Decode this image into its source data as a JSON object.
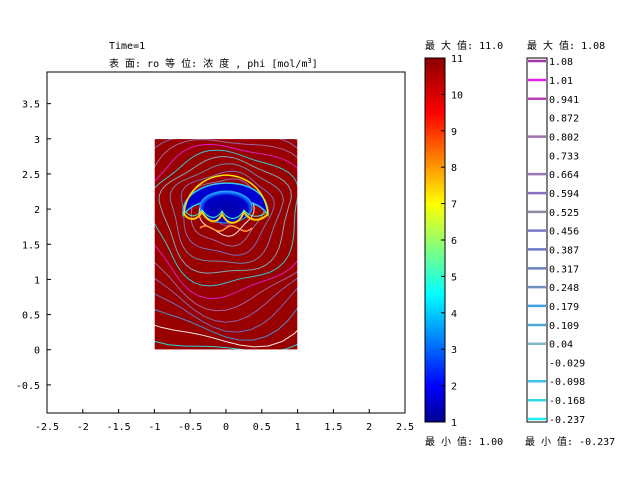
{
  "chart_data": {
    "type": "heatmap",
    "title_line1": "Time=1",
    "title_line2_prefix": "表 面: ro   等 位: 浓 度 , phi [mol/m",
    "title_line2_sup": "3",
    "title_line2_suffix": "]",
    "x_ticks": [
      "-2.5",
      "-2",
      "-1.5",
      "-1",
      "-0.5",
      "0",
      "0.5",
      "1",
      "1.5",
      "2",
      "2.5"
    ],
    "x_tick_values": [
      -2.5,
      -2,
      -1.5,
      -1,
      -0.5,
      0,
      0.5,
      1,
      1.5,
      2,
      2.5
    ],
    "y_ticks": [
      "3.5",
      "3",
      "2.5",
      "2",
      "1.5",
      "1",
      "0.5",
      "0",
      "-0.5"
    ],
    "y_tick_values": [
      3.5,
      3,
      2.5,
      2,
      1.5,
      1,
      0.5,
      0,
      -0.5
    ],
    "xlim": [
      -2.5,
      2.5
    ],
    "ylim": [
      -0.9,
      3.95
    ],
    "domain": {
      "x": [
        -1,
        1
      ],
      "y": [
        0,
        3
      ]
    },
    "surface": {
      "variable": "ro",
      "min": 1.0,
      "max": 11.0,
      "colorbar_ticks": [
        "11",
        "10",
        "9",
        "8",
        "7",
        "6",
        "5",
        "4",
        "3",
        "2",
        "1"
      ],
      "colorbar_values": [
        11,
        10,
        9,
        8,
        7,
        6,
        5,
        4,
        3,
        2,
        1
      ],
      "max_label": "最 大 值: 11.0",
      "min_label": "最 小 值: 1.00",
      "colors": [
        "#00008f",
        "#0000ff",
        "#00ffff",
        "#ffff00",
        "#ff0000",
        "#8b0000"
      ]
    },
    "contour": {
      "variable": "phi",
      "min": -0.237,
      "max": 1.08,
      "levels": [
        "1.08",
        "1.01",
        "0.941",
        "0.872",
        "0.802",
        "0.733",
        "0.664",
        "0.594",
        "0.525",
        "0.456",
        "0.387",
        "0.317",
        "0.248",
        "0.179",
        "0.109",
        "0.04",
        "-0.029",
        "-0.098",
        "-0.168",
        "-0.237"
      ],
      "level_colors": [
        "#a03aa8",
        "#e020e0",
        "#b840b8",
        "#ffffff",
        "#a070b0",
        "#ffffff",
        "#9878b8",
        "#8870c0",
        "#8a8aa0",
        "#7878c8",
        "#6a78c8",
        "#6a80b8",
        "#7090c0",
        "#40a0e0",
        "#50a8d8",
        "#80b8c8",
        "#ffffff",
        "#40c0e8",
        "#30d8e8",
        "#20f0f0"
      ],
      "max_label": "最 大 值: 1.08",
      "min_label": "最 小 值: -0.237"
    }
  }
}
